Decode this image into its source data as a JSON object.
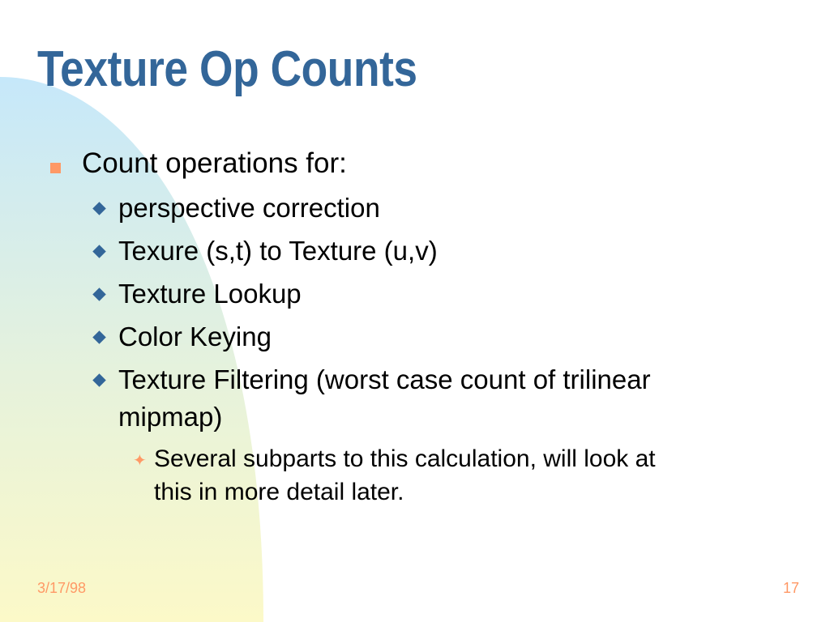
{
  "slide": {
    "title": "Texture Op Counts",
    "bullet": "Count operations for:",
    "sub_bullets": [
      "perspective correction",
      "Texure (s,t) to Texture (u,v)",
      "Texture Lookup",
      "Color Keying",
      "Texture Filtering (worst case count of trilinear",
      "mipmap)"
    ],
    "sub_sub_bullet_line1": "Several subparts to this calculation, will look at",
    "sub_sub_bullet_line2": "this in more detail later.",
    "date": "3/17/98",
    "page_number": "17"
  },
  "colors": {
    "title": "#336699",
    "accent": "#ff9966",
    "gradient_top": "#c6e8fa",
    "gradient_bottom": "#fcf9c8"
  },
  "icons": {
    "level1": "square-bullet-icon",
    "level2": "diamond-bullet-icon",
    "level3": "four-point-star-icon"
  }
}
